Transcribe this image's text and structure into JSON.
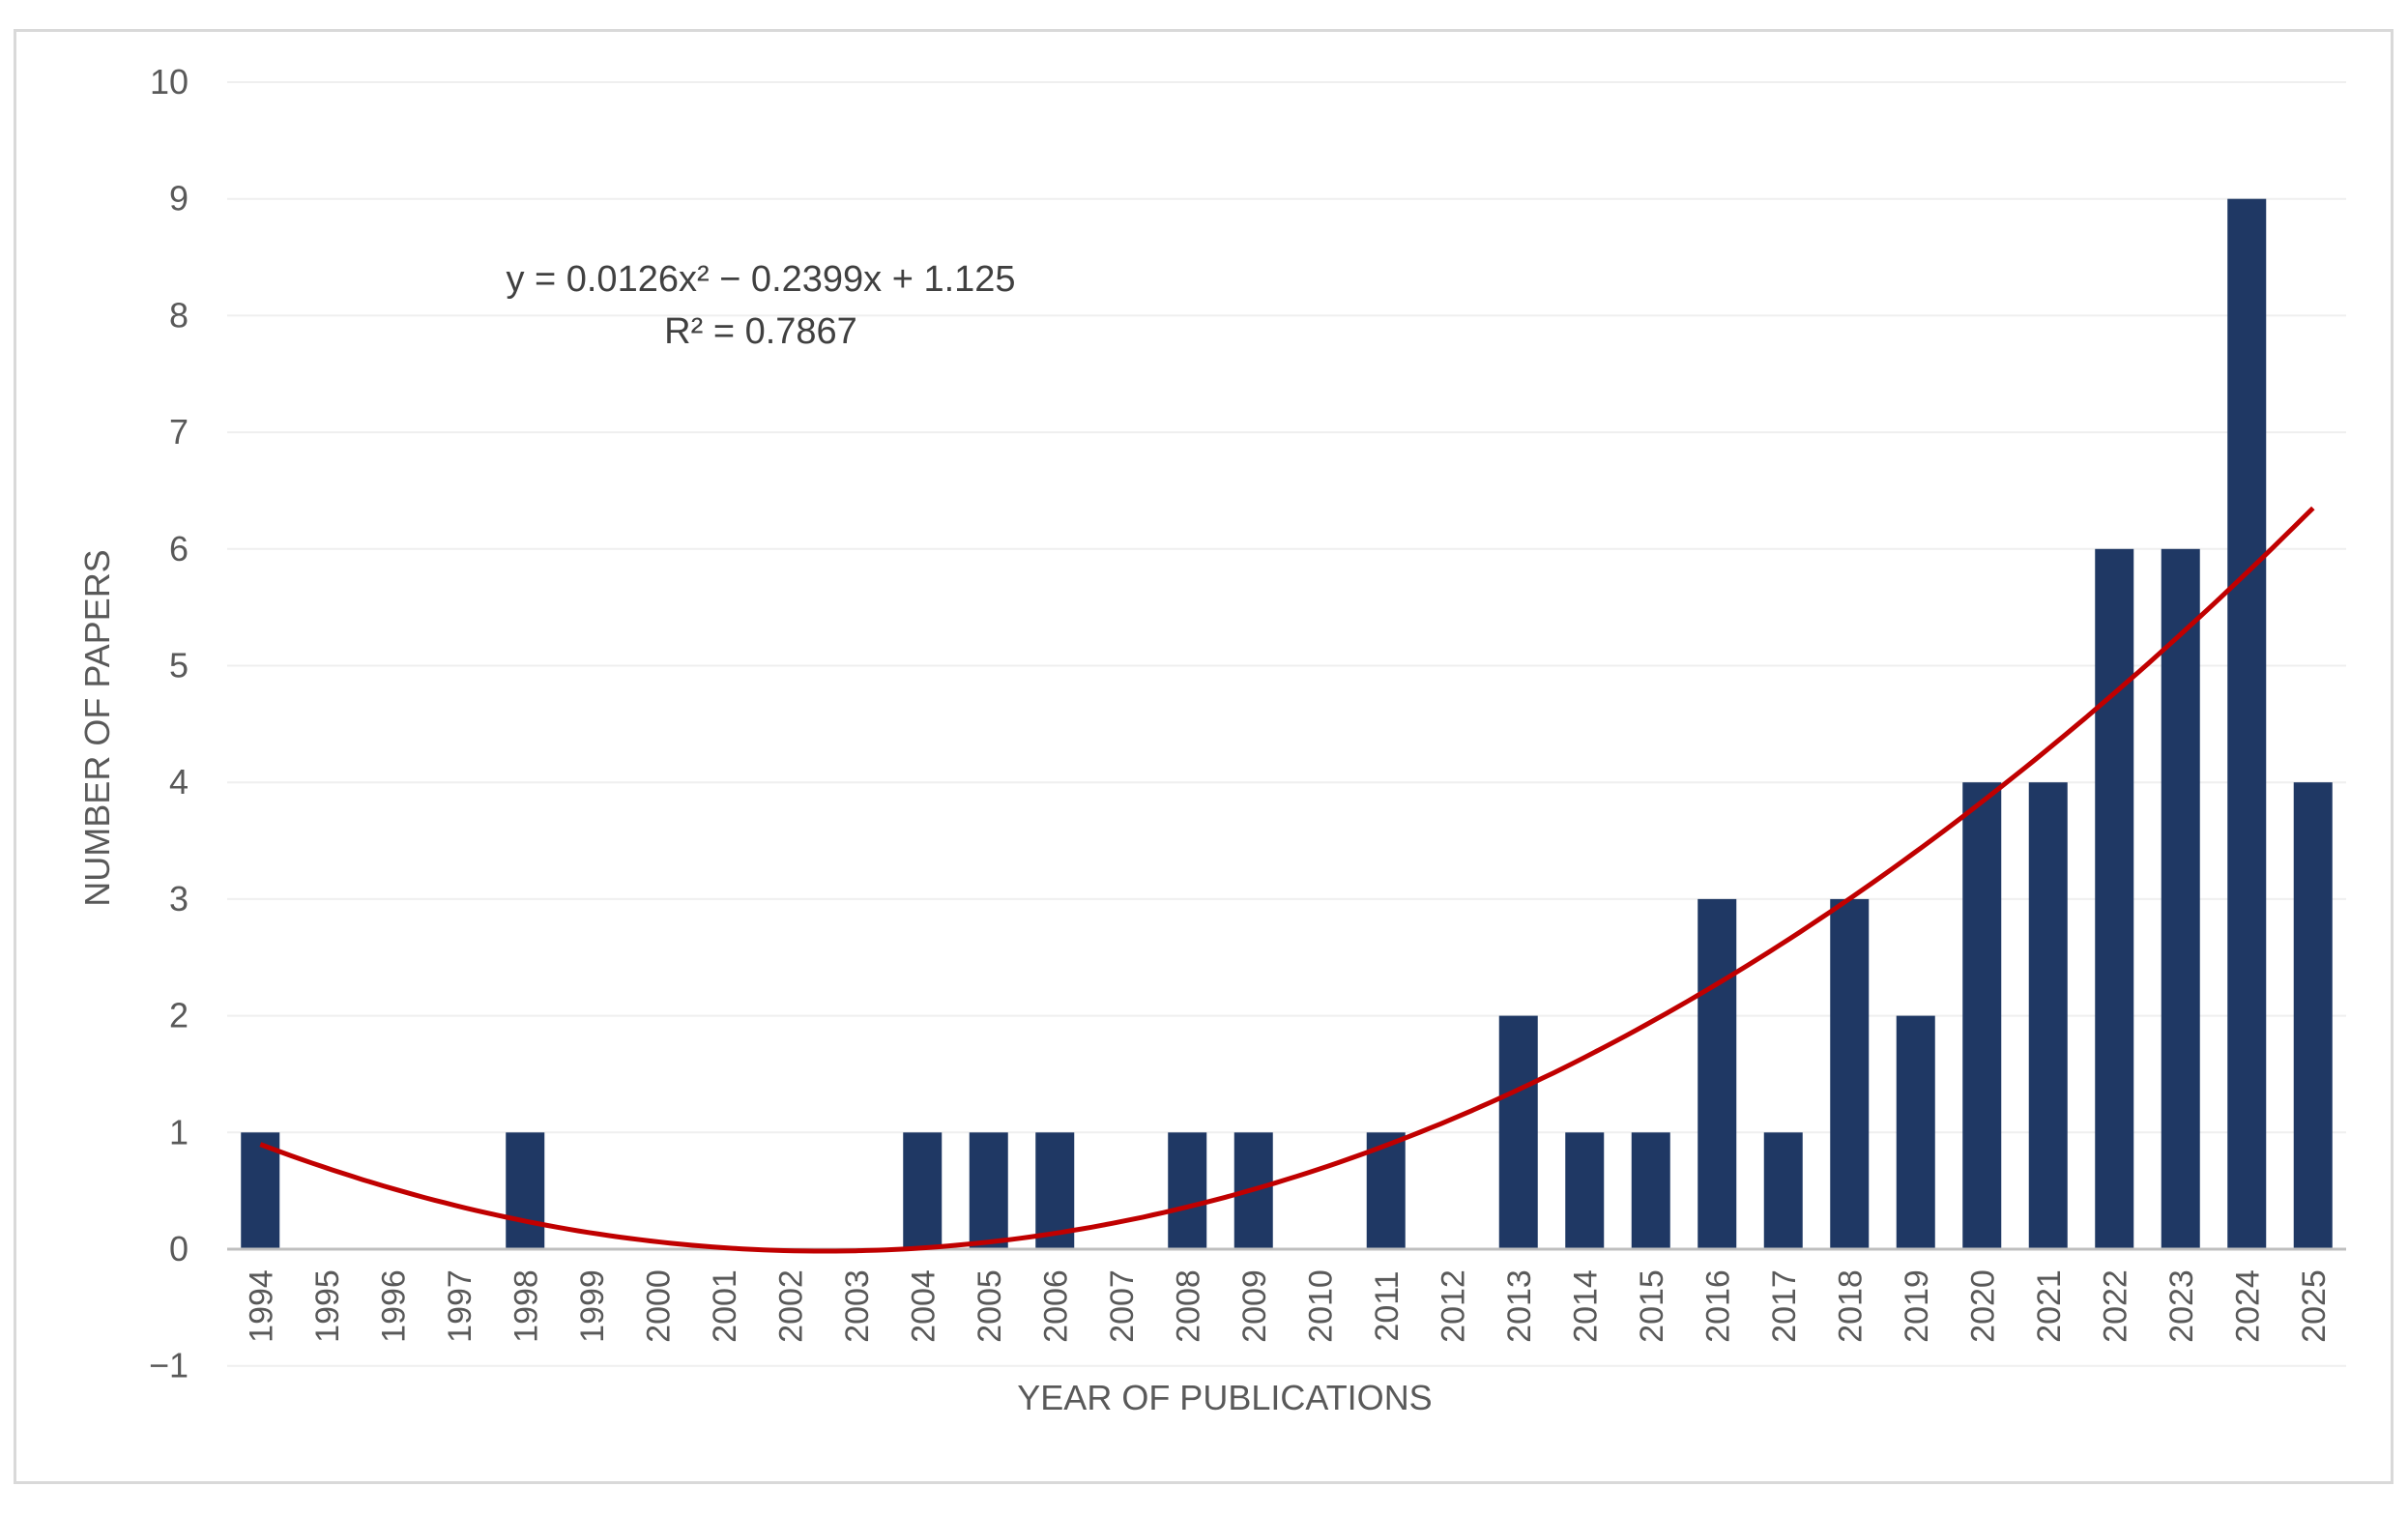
{
  "chart_data": {
    "type": "bar",
    "title": "",
    "xlabel": "YEAR OF PUBLICATIONS",
    "ylabel": "NUMBER OF PAPERS",
    "ylim": [
      -1,
      10
    ],
    "yticks": [
      "−1",
      "0",
      "1",
      "2",
      "3",
      "4",
      "5",
      "6",
      "7",
      "8",
      "9",
      "10"
    ],
    "grid": true,
    "categories": [
      "1994",
      "1995",
      "1996",
      "1997",
      "1998",
      "1999",
      "2000",
      "2001",
      "2002",
      "2003",
      "2004",
      "2005",
      "2006",
      "2007",
      "2008",
      "2009",
      "2010",
      "2011",
      "2012",
      "2013",
      "2014",
      "2015",
      "2016",
      "2017",
      "2018",
      "2019",
      "2020",
      "2021",
      "2022",
      "2023",
      "2024",
      "2025"
    ],
    "series": [
      {
        "name": "Number of papers",
        "color": "#1f3864",
        "values": [
          1,
          0,
          0,
          0,
          1,
          0,
          0,
          0,
          0,
          0,
          1,
          1,
          1,
          0,
          1,
          1,
          0,
          1,
          0,
          2,
          1,
          1,
          3,
          1,
          3,
          2,
          4,
          4,
          6,
          6,
          9,
          4
        ]
      }
    ],
    "trendline": {
      "type": "polynomial",
      "order": 2,
      "color": "#c00000",
      "coefficients": {
        "a": 0.0126,
        "b": -0.2399,
        "c": 1.125
      },
      "equation_label": "y = 0.0126x² − 0.2399x + 1.125",
      "r2_label": "R² = 0.7867"
    }
  }
}
